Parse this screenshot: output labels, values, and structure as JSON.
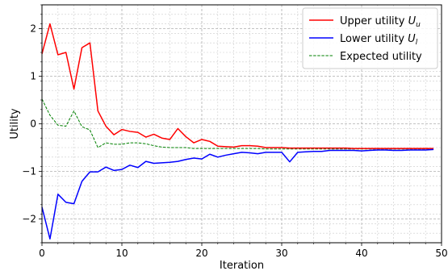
{
  "chart_data": {
    "type": "line",
    "title": "",
    "xlabel": "Iteration",
    "ylabel": "Utility",
    "xlim": [
      0,
      50
    ],
    "ylim": [
      -2.5,
      2.5
    ],
    "xticks": [
      0,
      10,
      20,
      30,
      40,
      50
    ],
    "yticks": [
      -2,
      -1,
      0,
      1,
      2
    ],
    "ytick_labels": [
      "−2",
      "−1",
      "0",
      "1",
      "2"
    ],
    "grid": true,
    "minor_grid": true,
    "legend_position": "top-right",
    "x": [
      0,
      1,
      2,
      3,
      4,
      5,
      6,
      7,
      8,
      9,
      10,
      11,
      12,
      13,
      14,
      15,
      16,
      17,
      18,
      19,
      20,
      21,
      22,
      23,
      24,
      25,
      26,
      27,
      28,
      29,
      30,
      31,
      32,
      33,
      34,
      35,
      36,
      37,
      38,
      39,
      40,
      41,
      42,
      43,
      44,
      45,
      46,
      47,
      48,
      49
    ],
    "series": [
      {
        "name": "Upper utility",
        "name_math": "U",
        "name_sub": "u",
        "color": "#ff0000",
        "style": "solid",
        "values": [
          1.47,
          2.1,
          1.45,
          1.5,
          0.73,
          1.6,
          1.7,
          0.27,
          -0.05,
          -0.23,
          -0.12,
          -0.16,
          -0.18,
          -0.28,
          -0.22,
          -0.3,
          -0.33,
          -0.1,
          -0.27,
          -0.4,
          -0.33,
          -0.37,
          -0.47,
          -0.48,
          -0.49,
          -0.46,
          -0.46,
          -0.47,
          -0.5,
          -0.5,
          -0.5,
          -0.51,
          -0.51,
          -0.51,
          -0.51,
          -0.51,
          -0.51,
          -0.51,
          -0.51,
          -0.52,
          -0.52,
          -0.52,
          -0.52,
          -0.52,
          -0.52,
          -0.52,
          -0.52,
          -0.52,
          -0.52,
          -0.52
        ]
      },
      {
        "name": "Lower utility",
        "name_math": "U",
        "name_sub": "l",
        "color": "#0000ff",
        "style": "solid",
        "values": [
          -1.75,
          -2.42,
          -1.48,
          -1.65,
          -1.68,
          -1.21,
          -1.01,
          -1.01,
          -0.91,
          -0.98,
          -0.96,
          -0.87,
          -0.92,
          -0.79,
          -0.83,
          -0.82,
          -0.81,
          -0.79,
          -0.75,
          -0.72,
          -0.74,
          -0.64,
          -0.7,
          -0.66,
          -0.63,
          -0.6,
          -0.61,
          -0.63,
          -0.6,
          -0.6,
          -0.6,
          -0.8,
          -0.6,
          -0.59,
          -0.58,
          -0.58,
          -0.56,
          -0.56,
          -0.56,
          -0.56,
          -0.57,
          -0.56,
          -0.55,
          -0.55,
          -0.56,
          -0.56,
          -0.55,
          -0.55,
          -0.55,
          -0.54
        ]
      },
      {
        "name": "Expected utility",
        "color": "#008000",
        "style": "dashed",
        "values": [
          0.52,
          0.18,
          -0.03,
          -0.05,
          0.27,
          -0.06,
          -0.13,
          -0.5,
          -0.4,
          -0.43,
          -0.43,
          -0.4,
          -0.4,
          -0.42,
          -0.46,
          -0.49,
          -0.5,
          -0.5,
          -0.5,
          -0.52,
          -0.52,
          -0.52,
          -0.52,
          -0.52,
          -0.52,
          -0.52,
          -0.52,
          -0.52,
          -0.53,
          -0.53,
          -0.53,
          -0.53,
          -0.53,
          -0.53,
          -0.53,
          -0.53,
          -0.53,
          -0.53,
          -0.53,
          -0.53,
          -0.53,
          -0.53,
          -0.53,
          -0.53,
          -0.53,
          -0.53,
          -0.53,
          -0.53,
          -0.53,
          -0.53
        ]
      }
    ]
  }
}
